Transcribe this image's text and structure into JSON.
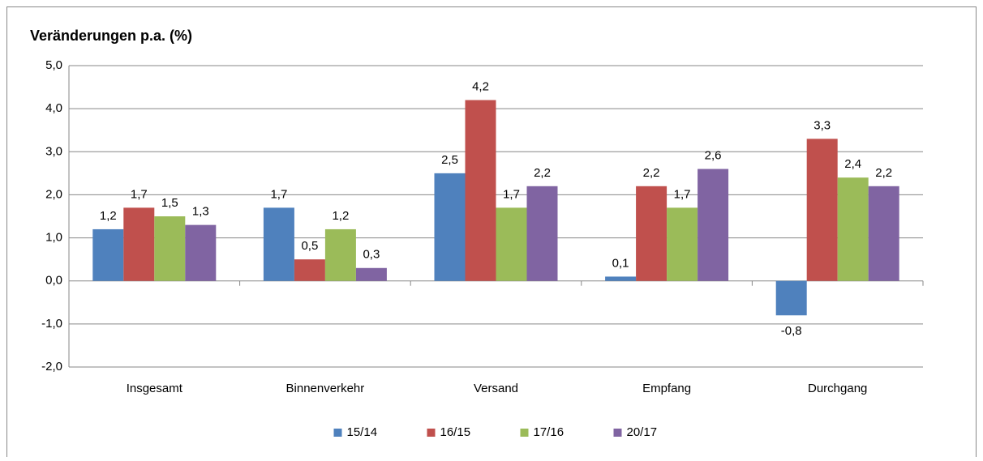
{
  "chart_data": {
    "type": "bar",
    "title": "Veränderungen p.a. (%)",
    "categories": [
      "Insgesamt",
      "Binnenverkehr",
      "Versand",
      "Empfang",
      "Durchgang"
    ],
    "series": [
      {
        "name": "15/14",
        "color": "#4f81bd",
        "values": [
          1.2,
          1.7,
          2.5,
          0.1,
          -0.8
        ],
        "value_labels": [
          "1,2",
          "1,7",
          "2,5",
          "0,1",
          "-0,8"
        ]
      },
      {
        "name": "16/15",
        "color": "#c0504d",
        "values": [
          1.7,
          0.5,
          4.2,
          2.2,
          3.3
        ],
        "value_labels": [
          "1,7",
          "0,5",
          "4,2",
          "2,2",
          "3,3"
        ]
      },
      {
        "name": "17/16",
        "color": "#9bbb59",
        "values": [
          1.5,
          1.2,
          1.7,
          1.7,
          2.4
        ],
        "value_labels": [
          "1,5",
          "1,2",
          "1,7",
          "1,7",
          "2,4"
        ]
      },
      {
        "name": "20/17",
        "color": "#8064a2",
        "values": [
          1.3,
          0.3,
          2.2,
          2.6,
          2.2
        ],
        "value_labels": [
          "1,3",
          "0,3",
          "2,2",
          "2,6",
          "2,2"
        ]
      }
    ],
    "ylim": [
      -2,
      5
    ],
    "yticks": [
      {
        "value": -2,
        "label": "-2,0"
      },
      {
        "value": -1,
        "label": "-1,0"
      },
      {
        "value": 0,
        "label": "0,0"
      },
      {
        "value": 1,
        "label": "1,0"
      },
      {
        "value": 2,
        "label": "2,0"
      },
      {
        "value": 3,
        "label": "3,0"
      },
      {
        "value": 4,
        "label": "4,0"
      },
      {
        "value": 5,
        "label": "5,0"
      }
    ],
    "grid": true,
    "legend": "bottom"
  }
}
